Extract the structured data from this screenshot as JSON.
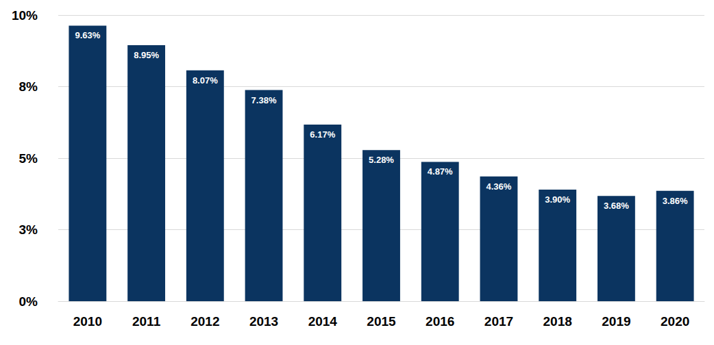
{
  "chart_data": {
    "type": "bar",
    "categories": [
      "2010",
      "2011",
      "2012",
      "2013",
      "2014",
      "2015",
      "2016",
      "2017",
      "2018",
      "2019",
      "2020"
    ],
    "values": [
      9.63,
      8.95,
      8.07,
      7.38,
      6.17,
      5.28,
      4.87,
      4.36,
      3.9,
      3.68,
      3.86
    ],
    "value_labels": [
      "9.63%",
      "8.95%",
      "8.07%",
      "7.38%",
      "6.17%",
      "5.28%",
      "4.87%",
      "4.36%",
      "3.90%",
      "3.68%",
      "3.86%"
    ],
    "color": "#0b3460",
    "ylim": [
      0,
      10
    ],
    "yticks": [
      {
        "value": 0,
        "label": "0%"
      },
      {
        "value": 2.5,
        "label": "3%"
      },
      {
        "value": 5,
        "label": "5%"
      },
      {
        "value": 7.5,
        "label": "8%"
      },
      {
        "value": 10,
        "label": "10%"
      }
    ],
    "grid": true,
    "data_labels": true
  }
}
